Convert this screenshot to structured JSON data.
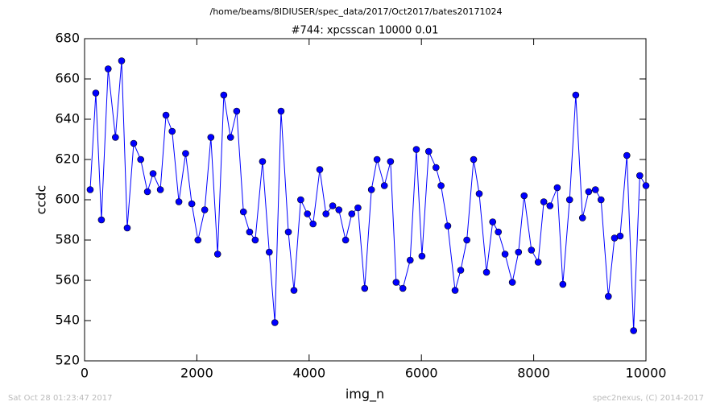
{
  "chart_data": {
    "type": "line",
    "header": "/home/beams/8IDIUSER/spec_data/2017/Oct2017/bates20171024",
    "title": "#744: xpcsscan 10000 0.01",
    "x_label": "img_n",
    "y_label": "ccdc",
    "footer_left": "Sat Oct 28 01:23:47 2017",
    "footer_right": "spec2nexus, (C) 2014-2017",
    "x": [
      100,
      200,
      300,
      420,
      550,
      660,
      760,
      875,
      1000,
      1120,
      1220,
      1350,
      1450,
      1560,
      1680,
      1800,
      1910,
      2020,
      2140,
      2250,
      2370,
      2480,
      2600,
      2710,
      2830,
      2940,
      3040,
      3170,
      3290,
      3390,
      3500,
      3630,
      3730,
      3850,
      3970,
      4070,
      4190,
      4300,
      4420,
      4530,
      4650,
      4760,
      4870,
      4990,
      5110,
      5210,
      5340,
      5450,
      5550,
      5670,
      5800,
      5910,
      6010,
      6130,
      6260,
      6350,
      6470,
      6600,
      6700,
      6810,
      6930,
      7030,
      7160,
      7270,
      7370,
      7490,
      7620,
      7730,
      7830,
      7960,
      8080,
      8180,
      8290,
      8420,
      8520,
      8640,
      8750,
      8870,
      8980,
      9100,
      9200,
      9330,
      9440,
      9540,
      9660,
      9780,
      9890,
      10000
    ],
    "series": [
      {
        "name": "ccdc",
        "color": "#0000ff",
        "values": [
          605,
          653,
          590,
          665,
          631,
          669,
          586,
          628,
          620,
          604,
          613,
          605,
          642,
          634,
          599,
          623,
          598,
          580,
          595,
          631,
          573,
          652,
          631,
          644,
          594,
          584,
          580,
          619,
          574,
          539,
          644,
          584,
          555,
          600,
          593,
          588,
          615,
          593,
          597,
          595,
          580,
          593,
          596,
          556,
          605,
          620,
          607,
          619,
          559,
          556,
          570,
          625,
          572,
          624,
          616,
          607,
          587,
          555,
          565,
          580,
          620,
          603,
          564,
          589,
          584,
          573,
          559,
          574,
          602,
          575,
          569,
          599,
          597,
          606,
          558,
          600,
          652,
          591,
          604,
          605,
          600,
          552,
          581,
          582,
          622,
          535,
          612,
          607
        ]
      }
    ],
    "xlim": [
      0,
      10000
    ],
    "ylim": [
      520,
      680
    ],
    "xticks": [
      0,
      2000,
      4000,
      6000,
      8000,
      10000
    ],
    "yticks": [
      520,
      540,
      560,
      580,
      600,
      620,
      640,
      660,
      680
    ],
    "grid": false
  }
}
